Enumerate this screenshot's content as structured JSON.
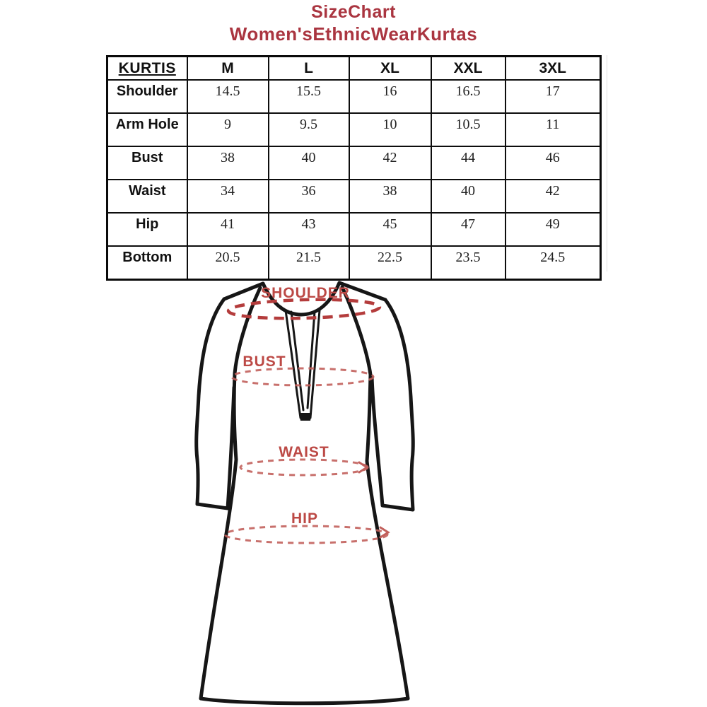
{
  "colors": {
    "page_background": "#ffffff",
    "title_text": "#aa3540",
    "table_border": "#0a0a0a",
    "table_text": "#111111",
    "diagram_outline": "#161616",
    "diagram_label": "#bc4945",
    "diagram_dash": "#c2605c"
  },
  "chart_data": {
    "type": "table",
    "title": "SizeChart",
    "subtitle": "Women'sEthnicWearKurtas",
    "columns": [
      "KURTIS",
      "M",
      "L",
      "XL",
      "XXL",
      "3XL"
    ],
    "rows": [
      [
        "Shoulder",
        "14.5",
        "15.5",
        "16",
        "16.5",
        "17"
      ],
      [
        "Arm Hole",
        "9",
        "9.5",
        "10",
        "10.5",
        "11"
      ],
      [
        "Bust",
        "38",
        "40",
        "42",
        "44",
        "46"
      ],
      [
        "Waist",
        "34",
        "36",
        "38",
        "40",
        "42"
      ],
      [
        "Hip",
        "41",
        "43",
        "45",
        "47",
        "49"
      ],
      [
        "Bottom",
        "20.5",
        "21.5",
        "22.5",
        "23.5",
        "24.5"
      ]
    ]
  },
  "diagram": {
    "labels": {
      "shoulder": "SHOULDER",
      "bust": "BUST",
      "waist": "WAIST",
      "hip": "HIP"
    }
  }
}
